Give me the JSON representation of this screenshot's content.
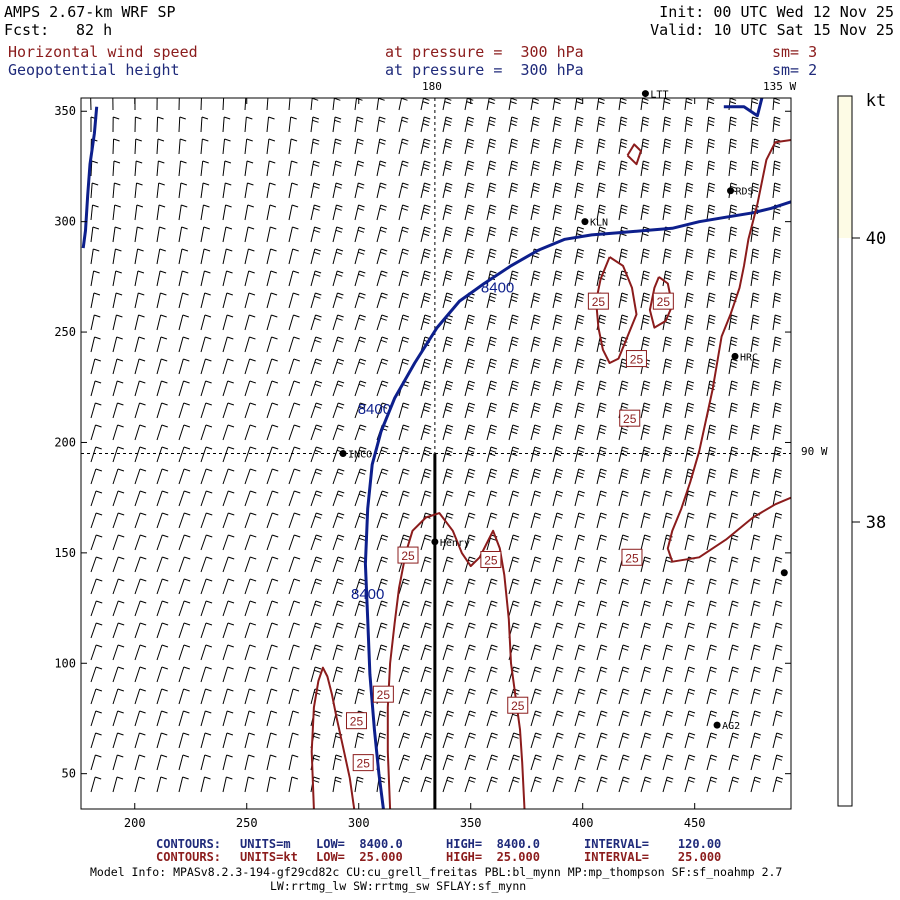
{
  "header": {
    "model": "AMPS 2.67-km WRF SP",
    "fcst_label": "Fcst:",
    "fcst_value": "82 h",
    "init": "Init: 00 UTC Wed 12 Nov 25",
    "valid": "Valid: 10 UTC Sat 15 Nov 25",
    "field1_name": "Horizontal wind speed",
    "field1_level": "at pressure =  300 hPa",
    "field1_sm": "sm= 3",
    "field2_name": "Geopotential height",
    "field2_level": "at pressure =  300 hPa",
    "field2_sm": "sm= 2"
  },
  "colors": {
    "height_contour": "#0d1f8c",
    "speed_contour": "#8b1c1c",
    "colorbar_fill": "#fdfbe5",
    "text_red": "#8b1c1c",
    "text_blue": "#1f2a7a"
  },
  "map_labels": {
    "lon_180": "180",
    "lon_135w": "135 W",
    "lon_90w": "90 W"
  },
  "stations": [
    {
      "name": "LTT",
      "x": 428,
      "y": 358
    },
    {
      "name": "RDS",
      "x": 466,
      "y": 314
    },
    {
      "name": "KLN",
      "x": 401,
      "y": 300
    },
    {
      "name": "HRC",
      "x": 468,
      "y": 239
    },
    {
      "name": "INCO",
      "x": 293,
      "y": 195
    },
    {
      "name": "Henry",
      "x": 334,
      "y": 155
    },
    {
      "name": "",
      "x": 490,
      "y": 141
    },
    {
      "name": "AG2",
      "x": 460,
      "y": 72
    }
  ],
  "colorbar": {
    "unit": "kt",
    "ticks": [
      {
        "label": "40",
        "value": 40
      },
      {
        "label": "38",
        "value": 38
      }
    ]
  },
  "footer": {
    "line1": {
      "contours": "CONTOURS:",
      "units": "UNITS=m",
      "low": "LOW=  8400.0",
      "high": "HIGH=  8400.0",
      "interval": "INTERVAL=    120.00"
    },
    "line2": {
      "contours": "CONTOURS:",
      "units": "UNITS=kt",
      "low": "LOW=  25.000",
      "high": "HIGH=  25.000",
      "interval": "INTERVAL=    25.000"
    },
    "model_info": "Model Info: MPASv8.2.3-194-gf29cd82c CU:cu_grell_freitas PBL:bl_mynn MP:mp_thompson SF:sf_noahmp 2.7",
    "model_info2": "LW:rrtmg_lw SW:rrtmg_sw SFLAY:sf_mynn"
  },
  "chart_data": {
    "type": "contour-map",
    "xlim": [
      176,
      493
    ],
    "ylim": [
      34,
      356
    ],
    "xticks": [
      200,
      250,
      300,
      350,
      400,
      450
    ],
    "yticks": [
      50,
      100,
      150,
      200,
      250,
      300,
      350
    ],
    "height_contour": {
      "value_label": "8400",
      "labels": [
        {
          "text": "8400",
          "x": 362,
          "y": 268
        },
        {
          "text": "8400",
          "x": 307,
          "y": 213
        },
        {
          "text": "8400",
          "x": 304,
          "y": 129
        }
      ],
      "lines": [
        [
          [
            183,
            352
          ],
          [
            182,
            340
          ],
          [
            180,
            326
          ],
          [
            179,
            312
          ],
          [
            178,
            296
          ],
          [
            177,
            288
          ]
        ],
        [
          [
            311,
            34
          ],
          [
            309,
            50
          ],
          [
            307,
            70
          ],
          [
            305,
            95
          ],
          [
            304,
            120
          ],
          [
            303,
            145
          ],
          [
            304,
            170
          ],
          [
            306,
            190
          ],
          [
            310,
            205
          ],
          [
            316,
            220
          ],
          [
            325,
            236
          ],
          [
            335,
            252
          ],
          [
            345,
            264
          ],
          [
            356,
            272
          ],
          [
            368,
            280
          ],
          [
            380,
            287
          ],
          [
            392,
            292
          ],
          [
            404,
            294
          ],
          [
            416,
            295
          ],
          [
            428,
            296
          ],
          [
            440,
            297
          ],
          [
            452,
            300
          ],
          [
            464,
            302
          ],
          [
            476,
            304
          ],
          [
            484,
            306
          ],
          [
            493,
            309
          ]
        ],
        [
          [
            463,
            352
          ],
          [
            472,
            352
          ],
          [
            478,
            348
          ],
          [
            480,
            356
          ]
        ]
      ]
    },
    "speed_contour": {
      "value_label": "25",
      "labels": [
        {
          "text": "25",
          "x": 407,
          "y": 264
        },
        {
          "text": "25",
          "x": 436,
          "y": 264
        },
        {
          "text": "25",
          "x": 424,
          "y": 238
        },
        {
          "text": "25",
          "x": 421,
          "y": 211
        },
        {
          "text": "25",
          "x": 422,
          "y": 148
        },
        {
          "text": "25",
          "x": 322,
          "y": 149
        },
        {
          "text": "25",
          "x": 359,
          "y": 147
        },
        {
          "text": "25",
          "x": 311,
          "y": 86
        },
        {
          "text": "25",
          "x": 299,
          "y": 74
        },
        {
          "text": "25",
          "x": 302,
          "y": 55
        },
        {
          "text": "25",
          "x": 371,
          "y": 81
        }
      ],
      "lines": [
        [
          [
            493,
            337
          ],
          [
            486,
            336
          ],
          [
            482,
            328
          ],
          [
            480,
            318
          ],
          [
            478,
            308
          ],
          [
            476,
            300
          ],
          [
            474,
            292
          ],
          [
            472,
            280
          ],
          [
            470,
            270
          ],
          [
            466,
            258
          ],
          [
            462,
            248
          ],
          [
            460,
            236
          ],
          [
            458,
            224
          ],
          [
            455,
            210
          ],
          [
            452,
            196
          ],
          [
            448,
            182
          ],
          [
            444,
            170
          ],
          [
            440,
            160
          ],
          [
            438,
            152
          ],
          [
            440,
            146
          ],
          [
            452,
            148
          ],
          [
            464,
            156
          ],
          [
            476,
            166
          ],
          [
            486,
            172
          ],
          [
            493,
            175
          ]
        ],
        [
          [
            412,
            284
          ],
          [
            408,
            274
          ],
          [
            406,
            264
          ],
          [
            407,
            252
          ],
          [
            409,
            242
          ],
          [
            412,
            236
          ],
          [
            416,
            238
          ],
          [
            420,
            248
          ],
          [
            424,
            258
          ],
          [
            422,
            270
          ],
          [
            418,
            280
          ],
          [
            412,
            284
          ]
        ],
        [
          [
            434,
            275
          ],
          [
            438,
            272
          ],
          [
            440,
            262
          ],
          [
            437,
            255
          ],
          [
            432,
            252
          ],
          [
            430,
            260
          ],
          [
            432,
            270
          ],
          [
            434,
            275
          ]
        ],
        [
          [
            420,
            330
          ],
          [
            423,
            335
          ],
          [
            426,
            332
          ],
          [
            424,
            326
          ],
          [
            420,
            330
          ]
        ],
        [
          [
            314,
            34
          ],
          [
            313,
            60
          ],
          [
            313,
            80
          ],
          [
            314,
            100
          ],
          [
            316,
            118
          ],
          [
            318,
            134
          ],
          [
            321,
            150
          ],
          [
            324,
            160
          ],
          [
            330,
            166
          ],
          [
            336,
            168
          ],
          [
            342,
            160
          ],
          [
            346,
            150
          ],
          [
            350,
            144
          ],
          [
            354,
            148
          ],
          [
            357,
            154
          ],
          [
            360,
            160
          ],
          [
            363,
            152
          ],
          [
            365,
            140
          ],
          [
            367,
            120
          ],
          [
            368,
            100
          ],
          [
            370,
            85
          ],
          [
            372,
            70
          ],
          [
            373,
            55
          ],
          [
            374,
            34
          ]
        ],
        [
          [
            298,
            34
          ],
          [
            296,
            48
          ],
          [
            293,
            62
          ],
          [
            290,
            76
          ],
          [
            288,
            86
          ],
          [
            286,
            94
          ],
          [
            284,
            98
          ],
          [
            282,
            92
          ],
          [
            280,
            80
          ],
          [
            279,
            60
          ],
          [
            280,
            34
          ]
        ]
      ]
    },
    "cross_section_line": {
      "x": 334,
      "y1": 34,
      "y2": 195
    },
    "reference_lines": {
      "lon_180_x": 334,
      "lon_90w_y": 195
    },
    "colorbar_range": [
      36,
      41
    ]
  }
}
